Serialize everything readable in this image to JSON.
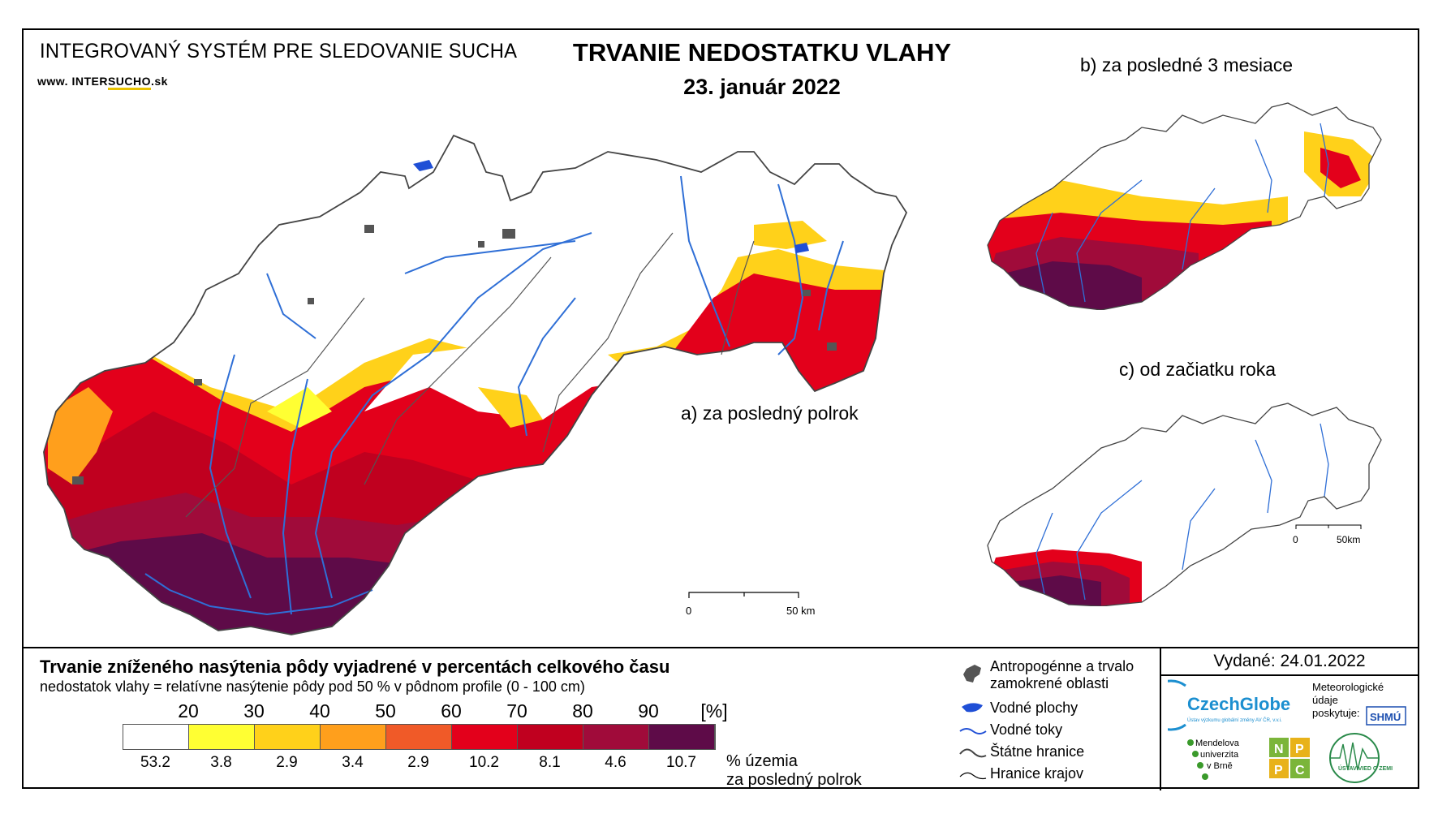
{
  "header": {
    "system_title": "INTEGROVANÝ SYSTÉM PRE SLEDOVANIE SUCHA",
    "website_prefix": "www.",
    "website_inter": "INTER",
    "website_sucho": "SUCHO",
    "website_suffix": ".sk",
    "main_title": "TRVANIE NEDOSTATKU VLAHY",
    "date": "23. január 2022"
  },
  "maps": {
    "a_label": "a) za posledný polrok",
    "b_label": "b) za posledné 3 mesiace",
    "c_label": "c) od začiatku roka",
    "scale_main": {
      "zero": "0",
      "end": "50 km"
    },
    "scale_small": {
      "zero": "0",
      "end": "50km"
    }
  },
  "legend": {
    "title": "Trvanie zníženého nasýtenia pôdy vyjadrené v percentách celkového času",
    "subtitle": "nedostatok vlahy = relatívne nasýtenie pôdy pod 50 % v pôdnom profile (0 - 100 cm)",
    "ticks": [
      "20",
      "30",
      "40",
      "50",
      "60",
      "70",
      "80",
      "90",
      "[%]"
    ],
    "colors": [
      "#ffffff",
      "#ffff33",
      "#ffd11a",
      "#ff9f1c",
      "#f05a28",
      "#e3001b",
      "#c0001f",
      "#a00b3a",
      "#5e0b48"
    ],
    "percentages": [
      "53.2",
      "3.8",
      "2.9",
      "3.4",
      "2.9",
      "10.2",
      "8.1",
      "4.6",
      "10.7"
    ],
    "pct_label_1": "% územia",
    "pct_label_2": "za posledný polrok",
    "items": {
      "anthropogenic_1": "Antropogénne a trvalo",
      "anthropogenic_2": "zamokrené oblasti",
      "water_areas": "Vodné plochy",
      "water_streams": "Vodné toky",
      "state_border": "Štátne hranice",
      "region_border": "Hranice krajov"
    }
  },
  "credits": {
    "issued": "Vydané: 24.01.2022",
    "czechglobe": "CzechGlobe",
    "czechglobe_sub": "Ústav výzkumu globální změny AV ČR, v.v.i.",
    "meteo_1": "Meteorologické",
    "meteo_2": "údaje",
    "meteo_3": "poskytuje:",
    "shmu": "SHMÚ",
    "mendel_1": "Mendelova",
    "mendel_2": "univerzita",
    "mendel_3": "v Brně",
    "nppc": [
      "N",
      "P",
      "P",
      "C"
    ],
    "uvz": "ÚSTAV VIED O ZEMI"
  }
}
